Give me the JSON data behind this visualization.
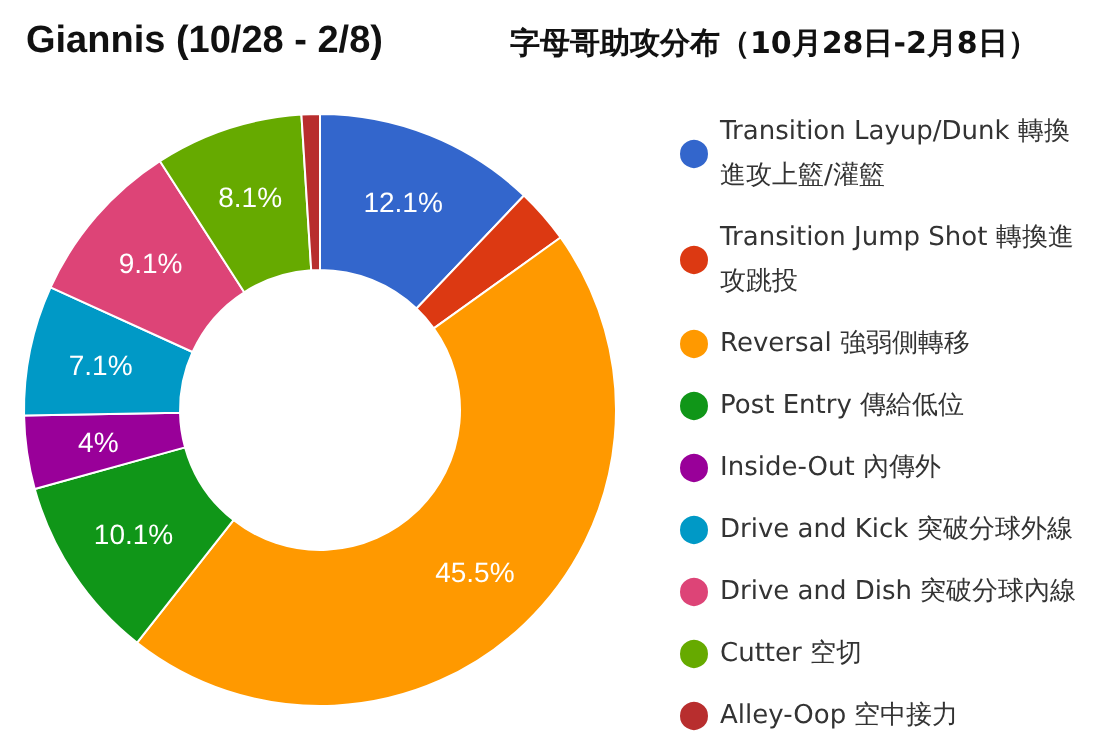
{
  "chart_data": {
    "type": "donut",
    "title": "Giannis (10/28 - 2/8)",
    "subtitle": "字母哥助攻分布（10月28日-2月8日）",
    "categories": [
      "Transition Layup/Dunk 轉換進攻上籃/灌籃",
      "Transition Jump Shot 轉換進攻跳投",
      "Reversal 強弱側轉移",
      "Post Entry 傳給低位",
      "Inside-Out 內傳外",
      "Drive and Kick 突破分球外線",
      "Drive and Dish 突破分球內線",
      "Cutter 空切",
      "Alley-Oop 空中接力"
    ],
    "values": [
      12.1,
      3.0,
      45.5,
      10.1,
      4,
      7.1,
      9.1,
      8.1,
      1.0
    ],
    "value_labels": [
      "12.1%",
      null,
      "45.5%",
      "10.1%",
      "4%",
      "7.1%",
      "9.1%",
      "8.1%",
      null
    ],
    "colors": [
      "#3366cc",
      "#dc3912",
      "#ff9900",
      "#109618",
      "#990099",
      "#0099c6",
      "#dd4477",
      "#66aa00",
      "#b82e2e"
    ],
    "legend": "right"
  }
}
